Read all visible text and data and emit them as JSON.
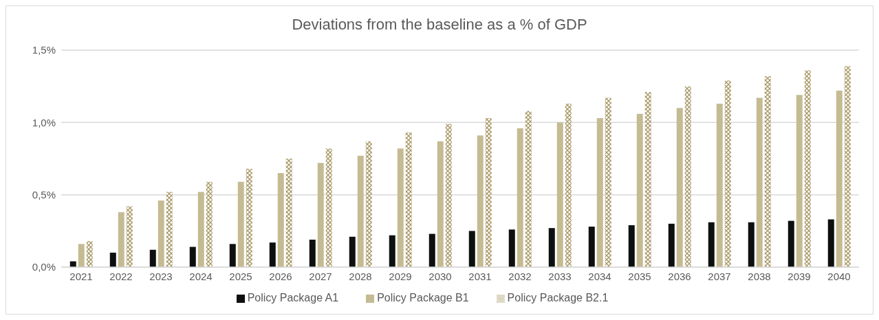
{
  "chart_data": {
    "type": "bar",
    "title": "Deviations from the baseline as a % of GDP",
    "categories": [
      "2021",
      "2022",
      "2023",
      "2024",
      "2025",
      "2026",
      "2027",
      "2028",
      "2029",
      "2030",
      "2031",
      "2032",
      "2033",
      "2034",
      "2035",
      "2036",
      "2037",
      "2038",
      "2039",
      "2040"
    ],
    "series": [
      {
        "name": "Policy Package A1",
        "color": "#0d100e",
        "values": [
          0.04,
          0.1,
          0.12,
          0.14,
          0.16,
          0.17,
          0.19,
          0.21,
          0.22,
          0.23,
          0.25,
          0.26,
          0.27,
          0.28,
          0.29,
          0.3,
          0.31,
          0.31,
          0.32,
          0.33
        ]
      },
      {
        "name": "Policy Package B1",
        "color": "#c5bb93",
        "values": [
          0.16,
          0.38,
          0.46,
          0.52,
          0.59,
          0.65,
          0.72,
          0.77,
          0.82,
          0.87,
          0.91,
          0.96,
          1.0,
          1.03,
          1.06,
          1.1,
          1.13,
          1.17,
          1.19,
          1.22
        ]
      },
      {
        "name": "Policy Package B2.1",
        "color": "#a89866",
        "values": [
          0.18,
          0.42,
          0.52,
          0.59,
          0.68,
          0.75,
          0.82,
          0.87,
          0.93,
          0.99,
          1.03,
          1.08,
          1.13,
          1.17,
          1.21,
          1.25,
          1.29,
          1.32,
          1.36,
          1.39
        ]
      }
    ],
    "ylim": [
      0,
      1.5
    ],
    "yticks": [
      {
        "value": 0,
        "label": "0,0%"
      },
      {
        "value": 0.5,
        "label": "0,5%"
      },
      {
        "value": 1.0,
        "label": "1,0%"
      },
      {
        "value": 1.5,
        "label": "1,5%"
      }
    ],
    "grid": "y",
    "legend": "bottom"
  }
}
